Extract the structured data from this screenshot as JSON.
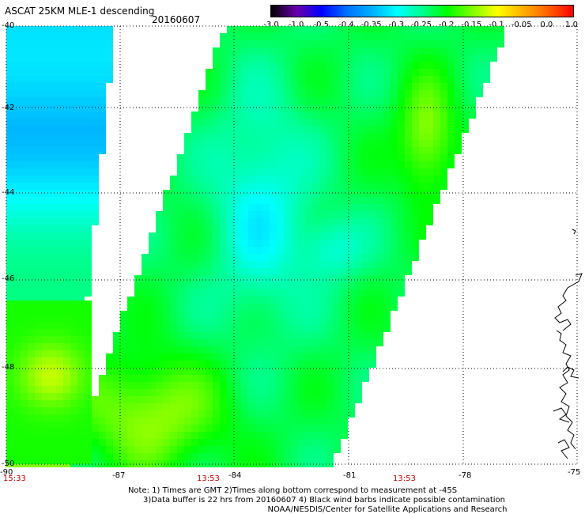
{
  "header": {
    "title": "ASCAT 25KM MLE-1 descending",
    "date": "20160607"
  },
  "colorbar": {
    "labels": [
      "-3.0",
      "-1.0",
      "-0.5",
      "-0.4",
      "-0.35",
      "-0.3",
      "-0.25",
      "-0.2",
      "-0.15",
      "-0.1",
      "-0.05",
      "0.0",
      "1.0"
    ],
    "colors": [
      "#000000",
      "#6a00a8",
      "#0000ff",
      "#0070ff",
      "#00b0ff",
      "#00ffff",
      "#00ff90",
      "#00ff00",
      "#80ff00",
      "#ffff00",
      "#ffb000",
      "#ff6000",
      "#ff0000"
    ]
  },
  "map": {
    "lat_labels": [
      "-40",
      "-42",
      "-44",
      "-46",
      "-48",
      "-50"
    ],
    "lon_labels": [
      "-90",
      "-87",
      "-84",
      "-81",
      "-78",
      "-75"
    ],
    "time_labels": [
      "15:33",
      "13:53",
      "13:53"
    ]
  },
  "notes": [
    "Note: 1) Times are GMT 2)Times along bottom correspond to measurement at -45S",
    "3)Data buffer is 22 hrs from 20160607 4) Black wind barbs indicate possible contamination",
    "NOAA/NESDIS/Center for Satellite Applications and Research"
  ]
}
